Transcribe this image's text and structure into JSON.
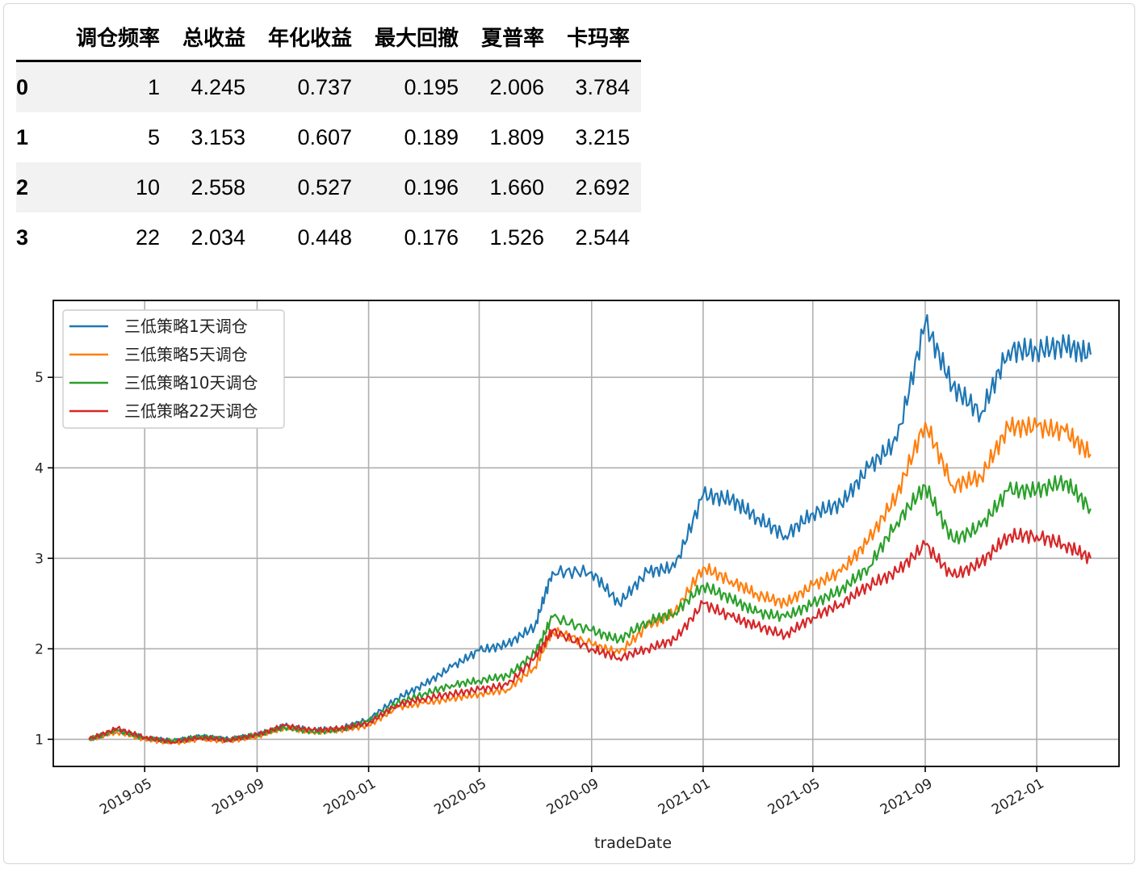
{
  "table": {
    "index_header": "",
    "columns": [
      "调仓频率",
      "总收益",
      "年化收益",
      "最大回撤",
      "夏普率",
      "卡玛率"
    ],
    "rows": [
      {
        "index": "0",
        "values": [
          "1",
          "4.245",
          "0.737",
          "0.195",
          "2.006",
          "3.784"
        ]
      },
      {
        "index": "1",
        "values": [
          "5",
          "3.153",
          "0.607",
          "0.189",
          "1.809",
          "3.215"
        ]
      },
      {
        "index": "2",
        "values": [
          "10",
          "2.558",
          "0.527",
          "0.196",
          "1.660",
          "2.692"
        ]
      },
      {
        "index": "3",
        "values": [
          "22",
          "2.034",
          "0.448",
          "0.176",
          "1.526",
          "2.544"
        ]
      }
    ]
  },
  "chart_data": {
    "type": "line",
    "xlabel": "tradeDate",
    "ylabel": "",
    "title": "",
    "xlim": [
      "2019-01-21",
      "2022-04-01"
    ],
    "ylim": [
      0.7,
      5.85
    ],
    "yticks": [
      1,
      2,
      3,
      4,
      5
    ],
    "xticks": [
      "2019-05",
      "2019-09",
      "2020-01",
      "2020-05",
      "2020-09",
      "2021-01",
      "2021-05",
      "2021-09",
      "2022-01"
    ],
    "grid": true,
    "legend_position": "top-left",
    "series": [
      {
        "name": "三低策略1天调仓",
        "color": "#1f77b4",
        "points": [
          [
            "2019-03-01",
            1.0
          ],
          [
            "2019-04-01",
            1.1
          ],
          [
            "2019-05-01",
            1.02
          ],
          [
            "2019-06-01",
            0.98
          ],
          [
            "2019-07-01",
            1.03
          ],
          [
            "2019-08-01",
            1.0
          ],
          [
            "2019-09-01",
            1.05
          ],
          [
            "2019-10-01",
            1.15
          ],
          [
            "2019-11-01",
            1.1
          ],
          [
            "2019-12-01",
            1.12
          ],
          [
            "2020-01-01",
            1.22
          ],
          [
            "2020-02-01",
            1.45
          ],
          [
            "2020-03-01",
            1.6
          ],
          [
            "2020-04-01",
            1.8
          ],
          [
            "2020-05-01",
            1.98
          ],
          [
            "2020-06-01",
            2.05
          ],
          [
            "2020-07-01",
            2.25
          ],
          [
            "2020-07-20",
            2.85
          ],
          [
            "2020-09-01",
            2.85
          ],
          [
            "2020-10-01",
            2.5
          ],
          [
            "2020-11-01",
            2.85
          ],
          [
            "2020-12-01",
            2.9
          ],
          [
            "2021-01-01",
            3.7
          ],
          [
            "2021-02-01",
            3.65
          ],
          [
            "2021-03-01",
            3.45
          ],
          [
            "2021-04-01",
            3.25
          ],
          [
            "2021-05-01",
            3.5
          ],
          [
            "2021-06-01",
            3.6
          ],
          [
            "2021-07-01",
            4.0
          ],
          [
            "2021-08-01",
            4.3
          ],
          [
            "2021-09-01",
            5.6
          ],
          [
            "2021-10-01",
            4.9
          ],
          [
            "2021-11-01",
            4.6
          ],
          [
            "2021-12-01",
            5.3
          ],
          [
            "2022-01-01",
            5.3
          ],
          [
            "2022-02-01",
            5.35
          ],
          [
            "2022-03-01",
            5.25
          ]
        ]
      },
      {
        "name": "三低策略5天调仓",
        "color": "#ff7f0e",
        "points": [
          [
            "2019-03-01",
            1.0
          ],
          [
            "2019-04-01",
            1.08
          ],
          [
            "2019-05-01",
            1.0
          ],
          [
            "2019-06-01",
            0.96
          ],
          [
            "2019-07-01",
            1.0
          ],
          [
            "2019-08-01",
            0.98
          ],
          [
            "2019-09-01",
            1.03
          ],
          [
            "2019-10-01",
            1.13
          ],
          [
            "2019-11-01",
            1.08
          ],
          [
            "2019-12-01",
            1.1
          ],
          [
            "2020-01-01",
            1.15
          ],
          [
            "2020-02-01",
            1.35
          ],
          [
            "2020-03-01",
            1.4
          ],
          [
            "2020-04-01",
            1.45
          ],
          [
            "2020-05-01",
            1.5
          ],
          [
            "2020-06-01",
            1.55
          ],
          [
            "2020-07-01",
            1.8
          ],
          [
            "2020-07-20",
            2.2
          ],
          [
            "2020-09-01",
            2.05
          ],
          [
            "2020-10-01",
            1.95
          ],
          [
            "2020-11-01",
            2.25
          ],
          [
            "2020-12-01",
            2.4
          ],
          [
            "2021-01-01",
            2.9
          ],
          [
            "2021-02-01",
            2.75
          ],
          [
            "2021-03-01",
            2.6
          ],
          [
            "2021-04-01",
            2.5
          ],
          [
            "2021-05-01",
            2.7
          ],
          [
            "2021-06-01",
            2.85
          ],
          [
            "2021-07-01",
            3.2
          ],
          [
            "2021-08-01",
            3.7
          ],
          [
            "2021-09-01",
            4.5
          ],
          [
            "2021-10-01",
            3.8
          ],
          [
            "2021-11-01",
            3.9
          ],
          [
            "2021-12-01",
            4.45
          ],
          [
            "2022-01-01",
            4.45
          ],
          [
            "2022-02-01",
            4.4
          ],
          [
            "2022-03-01",
            4.15
          ]
        ]
      },
      {
        "name": "三低策略10天调仓",
        "color": "#2ca02c",
        "points": [
          [
            "2019-03-01",
            1.0
          ],
          [
            "2019-04-01",
            1.1
          ],
          [
            "2019-05-01",
            1.01
          ],
          [
            "2019-06-01",
            0.98
          ],
          [
            "2019-07-01",
            1.03
          ],
          [
            "2019-08-01",
            1.0
          ],
          [
            "2019-09-01",
            1.05
          ],
          [
            "2019-10-01",
            1.13
          ],
          [
            "2019-11-01",
            1.08
          ],
          [
            "2019-12-01",
            1.1
          ],
          [
            "2020-01-01",
            1.2
          ],
          [
            "2020-02-01",
            1.4
          ],
          [
            "2020-03-01",
            1.5
          ],
          [
            "2020-04-01",
            1.6
          ],
          [
            "2020-05-01",
            1.65
          ],
          [
            "2020-06-01",
            1.7
          ],
          [
            "2020-07-01",
            1.95
          ],
          [
            "2020-07-20",
            2.35
          ],
          [
            "2020-09-01",
            2.2
          ],
          [
            "2020-10-01",
            2.1
          ],
          [
            "2020-11-01",
            2.3
          ],
          [
            "2020-12-01",
            2.4
          ],
          [
            "2021-01-01",
            2.7
          ],
          [
            "2021-02-01",
            2.55
          ],
          [
            "2021-03-01",
            2.4
          ],
          [
            "2021-04-01",
            2.35
          ],
          [
            "2021-05-01",
            2.5
          ],
          [
            "2021-06-01",
            2.65
          ],
          [
            "2021-07-01",
            2.9
          ],
          [
            "2021-08-01",
            3.4
          ],
          [
            "2021-09-01",
            3.8
          ],
          [
            "2021-10-01",
            3.2
          ],
          [
            "2021-11-01",
            3.35
          ],
          [
            "2021-12-01",
            3.75
          ],
          [
            "2022-01-01",
            3.75
          ],
          [
            "2022-02-01",
            3.85
          ],
          [
            "2022-03-01",
            3.55
          ]
        ]
      },
      {
        "name": "三低策略22天调仓",
        "color": "#d62728",
        "points": [
          [
            "2019-03-01",
            1.0
          ],
          [
            "2019-04-01",
            1.12
          ],
          [
            "2019-05-01",
            1.02
          ],
          [
            "2019-06-01",
            0.97
          ],
          [
            "2019-07-01",
            1.02
          ],
          [
            "2019-08-01",
            0.99
          ],
          [
            "2019-09-01",
            1.05
          ],
          [
            "2019-10-01",
            1.15
          ],
          [
            "2019-11-01",
            1.1
          ],
          [
            "2019-12-01",
            1.12
          ],
          [
            "2020-01-01",
            1.18
          ],
          [
            "2020-02-01",
            1.38
          ],
          [
            "2020-03-01",
            1.45
          ],
          [
            "2020-04-01",
            1.5
          ],
          [
            "2020-05-01",
            1.55
          ],
          [
            "2020-06-01",
            1.6
          ],
          [
            "2020-07-01",
            1.9
          ],
          [
            "2020-07-20",
            2.2
          ],
          [
            "2020-09-01",
            2.0
          ],
          [
            "2020-10-01",
            1.9
          ],
          [
            "2020-11-01",
            2.0
          ],
          [
            "2020-12-01",
            2.1
          ],
          [
            "2021-01-01",
            2.5
          ],
          [
            "2021-02-01",
            2.35
          ],
          [
            "2021-03-01",
            2.25
          ],
          [
            "2021-04-01",
            2.15
          ],
          [
            "2021-05-01",
            2.35
          ],
          [
            "2021-06-01",
            2.5
          ],
          [
            "2021-07-01",
            2.7
          ],
          [
            "2021-08-01",
            2.85
          ],
          [
            "2021-09-01",
            3.15
          ],
          [
            "2021-10-01",
            2.8
          ],
          [
            "2021-11-01",
            2.95
          ],
          [
            "2021-12-01",
            3.25
          ],
          [
            "2022-01-01",
            3.25
          ],
          [
            "2022-02-01",
            3.15
          ],
          [
            "2022-03-01",
            3.0
          ]
        ]
      }
    ]
  }
}
